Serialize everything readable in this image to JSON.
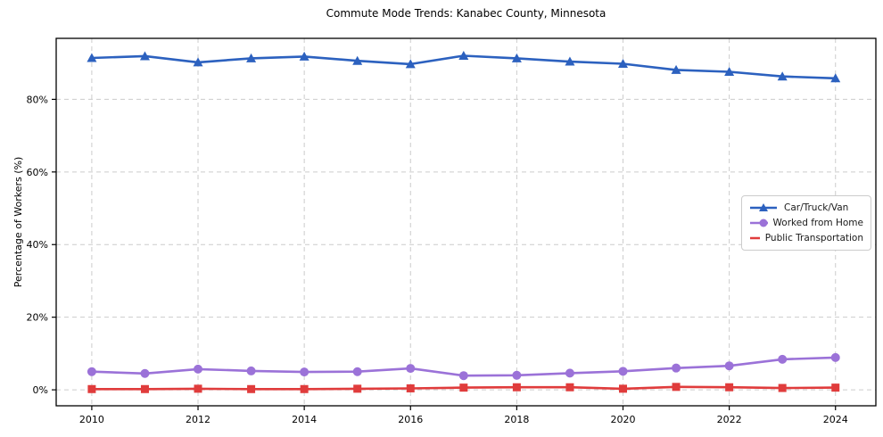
{
  "title": "Commute Mode Trends: Kanabec County, Minnesota",
  "axes": {
    "ylabel": "Percentage of Workers (%)",
    "ytick_labels": [
      "0%",
      "20%",
      "40%",
      "60%",
      "80%"
    ],
    "xtick_labels": [
      "2010",
      "2012",
      "2014",
      "2016",
      "2018",
      "2020",
      "2022",
      "2024"
    ]
  },
  "legend": {
    "entries": [
      "Car/Truck/Van",
      "Worked from Home",
      "Public Transportation"
    ]
  },
  "colors": {
    "car": "#2c61bf",
    "home": "#9b72d8",
    "transit": "#e03c3c",
    "grid": "#cccccc",
    "spine": "#000000"
  },
  "chart_data": {
    "type": "line",
    "title": "Commute Mode Trends: Kanabec County, Minnesota",
    "xlabel": "",
    "ylabel": "Percentage of Workers (%)",
    "x": [
      2010,
      2011,
      2012,
      2013,
      2014,
      2015,
      2016,
      2017,
      2018,
      2019,
      2020,
      2021,
      2022,
      2023,
      2024
    ],
    "series": [
      {
        "name": "Car/Truck/Van",
        "color": "#2c61bf",
        "marker": "triangle",
        "values": [
          91.4,
          91.9,
          90.2,
          91.3,
          91.8,
          90.6,
          89.7,
          92.0,
          91.3,
          90.4,
          89.8,
          88.1,
          87.6,
          86.3,
          85.8
        ]
      },
      {
        "name": "Worked from Home",
        "color": "#9b72d8",
        "marker": "circle",
        "values": [
          5.0,
          4.5,
          5.7,
          5.2,
          4.9,
          5.0,
          5.9,
          3.9,
          4.0,
          4.6,
          5.1,
          6.0,
          6.6,
          8.4,
          8.9
        ]
      },
      {
        "name": "Public Transportation",
        "color": "#e03c3c",
        "marker": "square",
        "values": [
          0.2,
          0.2,
          0.3,
          0.2,
          0.2,
          0.3,
          0.4,
          0.6,
          0.7,
          0.7,
          0.3,
          0.8,
          0.7,
          0.5,
          0.6
        ]
      }
    ],
    "xticks": [
      2010,
      2012,
      2014,
      2016,
      2018,
      2020,
      2022,
      2024
    ],
    "yticks": [
      0,
      20,
      40,
      60,
      80
    ],
    "xlim": [
      2009.33,
      2024.76
    ],
    "ylim": [
      -4.4,
      96.8
    ],
    "grid": true,
    "grid_style": "dashed",
    "legend_position": "center right"
  }
}
